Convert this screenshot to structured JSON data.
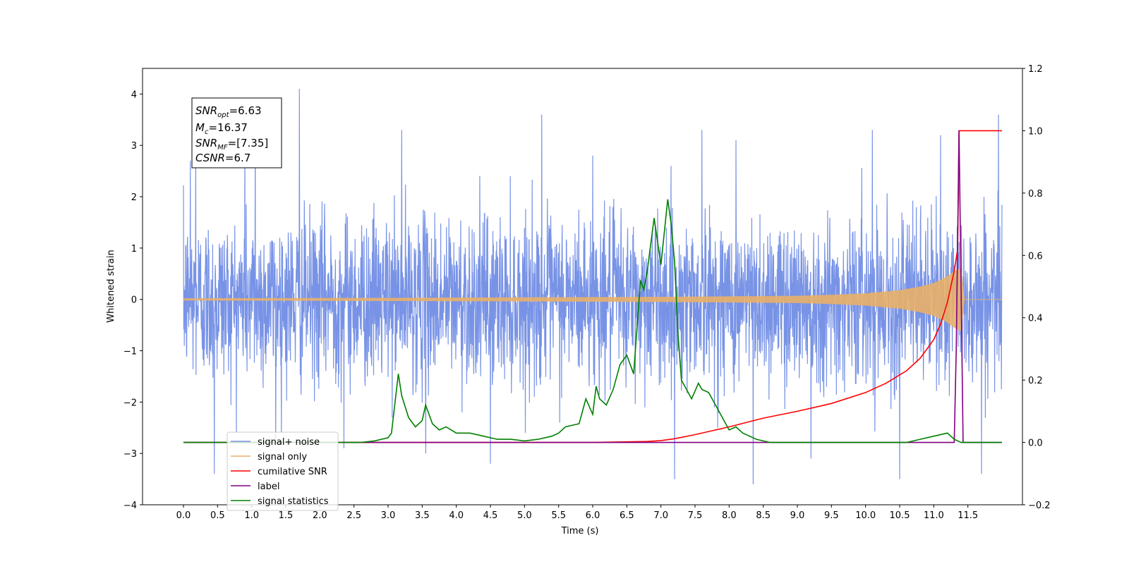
{
  "chart_data": {
    "type": "line",
    "xlabel": "Time (s)",
    "ylabel": "Whitened strain",
    "y2label": "",
    "xlim": [
      -0.6,
      12.3
    ],
    "ylim": [
      -4,
      4.5
    ],
    "y2lim": [
      -0.2,
      1.2
    ],
    "xticks": [
      "0.0",
      "0.5",
      "1.0",
      "1.5",
      "2.0",
      "2.5",
      "3.0",
      "3.5",
      "4.0",
      "4.5",
      "5.0",
      "5.5",
      "6.0",
      "6.5",
      "7.0",
      "7.5",
      "8.0",
      "8.5",
      "9.0",
      "9.5",
      "10.0",
      "10.5",
      "11.0",
      "11.5"
    ],
    "yticks": [
      "4",
      "3",
      "2",
      "1",
      "0",
      "−1",
      "−2",
      "−3",
      "−4"
    ],
    "y2ticks": [
      "1.2",
      "1.0",
      "0.8",
      "0.6",
      "0.4",
      "0.2",
      "0.0",
      "−0.2"
    ],
    "grid": false,
    "legend_position": "lower-left",
    "annotation": {
      "snr_opt": "=6.63",
      "mc": "=16.37",
      "snr_mf": "=[7.35]",
      "csnr": "=6.7"
    },
    "series": [
      {
        "name": "signal+ noise",
        "color": "#7893e6",
        "axis": "left",
        "style": "dense noise, approx. gaussian, std ~0.8, visible spikes",
        "x_range": [
          0.0,
          12.0
        ],
        "spikes": [
          [
            0.1,
            2.7
          ],
          [
            0.18,
            3.0
          ],
          [
            0.45,
            -3.4
          ],
          [
            0.9,
            3.3
          ],
          [
            1.05,
            3.4
          ],
          [
            1.35,
            -2.8
          ],
          [
            1.7,
            4.1
          ],
          [
            2.35,
            -2.9
          ],
          [
            3.2,
            3.3
          ],
          [
            3.55,
            -3.0
          ],
          [
            4.5,
            -3.2
          ],
          [
            5.25,
            3.6
          ],
          [
            6.0,
            2.8
          ],
          [
            7.2,
            -3.5
          ],
          [
            7.6,
            3.3
          ],
          [
            8.1,
            3.1
          ],
          [
            8.35,
            -3.6
          ],
          [
            9.2,
            -3.1
          ],
          [
            10.1,
            3.3
          ],
          [
            10.5,
            -3.5
          ],
          [
            11.1,
            3.2
          ],
          [
            11.7,
            -3.4
          ],
          [
            11.95,
            3.6
          ]
        ]
      },
      {
        "name": "signal only",
        "color": "#e8b068",
        "axis": "left",
        "style": "chirp with growing amplitude",
        "x": [
          0,
          3,
          5,
          7,
          8,
          9,
          9.5,
          10,
          10.5,
          10.8,
          11.0,
          11.2,
          11.3,
          11.4,
          11.45
        ],
        "amplitude": [
          0.02,
          0.03,
          0.04,
          0.05,
          0.06,
          0.07,
          0.09,
          0.12,
          0.18,
          0.25,
          0.32,
          0.45,
          0.55,
          0.62,
          0.0
        ]
      },
      {
        "name": "cumilative SNR",
        "color": "#ff0000",
        "axis": "right",
        "x": [
          0,
          6.0,
          6.8,
          7.0,
          7.2,
          7.5,
          7.8,
          8.0,
          8.5,
          9.0,
          9.5,
          10.0,
          10.3,
          10.6,
          10.8,
          11.0,
          11.1,
          11.2,
          11.3,
          11.35,
          11.37,
          11.4,
          11.6,
          11.8,
          12.0
        ],
        "y": [
          0,
          0,
          0.003,
          0.006,
          0.012,
          0.025,
          0.04,
          0.05,
          0.078,
          0.1,
          0.125,
          0.16,
          0.19,
          0.23,
          0.27,
          0.33,
          0.38,
          0.45,
          0.55,
          0.62,
          1.0,
          1.0,
          1.0,
          1.0,
          1.0
        ]
      },
      {
        "name": "label",
        "color": "#800080",
        "axis": "right",
        "x": [
          0,
          11.3,
          11.33,
          11.37,
          11.4,
          11.43,
          11.45,
          12.0
        ],
        "y": [
          0,
          0,
          0.3,
          1.0,
          0.5,
          0.0,
          0,
          0
        ]
      },
      {
        "name": "signal statistics",
        "color": "#008000",
        "axis": "right",
        "x": [
          0,
          2.6,
          2.8,
          3.0,
          3.05,
          3.15,
          3.2,
          3.3,
          3.4,
          3.5,
          3.55,
          3.65,
          3.75,
          3.85,
          4.0,
          4.2,
          4.4,
          4.6,
          4.8,
          5.0,
          5.2,
          5.4,
          5.5,
          5.6,
          5.8,
          5.9,
          6.0,
          6.05,
          6.1,
          6.2,
          6.3,
          6.4,
          6.5,
          6.6,
          6.7,
          6.75,
          6.8,
          6.9,
          7.0,
          7.1,
          7.15,
          7.2,
          7.25,
          7.3,
          7.35,
          7.45,
          7.55,
          7.6,
          7.7,
          7.8,
          7.9,
          8.0,
          8.1,
          8.2,
          8.3,
          8.4,
          8.6,
          9.0,
          10.6,
          10.8,
          11.0,
          11.2,
          11.3,
          11.4,
          11.45,
          12.0
        ],
        "y": [
          0,
          0,
          0.005,
          0.015,
          0.03,
          0.22,
          0.15,
          0.08,
          0.05,
          0.07,
          0.12,
          0.06,
          0.04,
          0.05,
          0.03,
          0.03,
          0.02,
          0.01,
          0.01,
          0.005,
          0.01,
          0.02,
          0.03,
          0.05,
          0.06,
          0.14,
          0.09,
          0.18,
          0.14,
          0.12,
          0.17,
          0.25,
          0.28,
          0.22,
          0.52,
          0.49,
          0.55,
          0.72,
          0.57,
          0.78,
          0.7,
          0.58,
          0.35,
          0.2,
          0.18,
          0.14,
          0.19,
          0.17,
          0.16,
          0.12,
          0.08,
          0.04,
          0.05,
          0.03,
          0.02,
          0.01,
          0,
          0,
          0,
          0.01,
          0.02,
          0.03,
          0.01,
          0,
          0,
          0
        ]
      }
    ]
  }
}
